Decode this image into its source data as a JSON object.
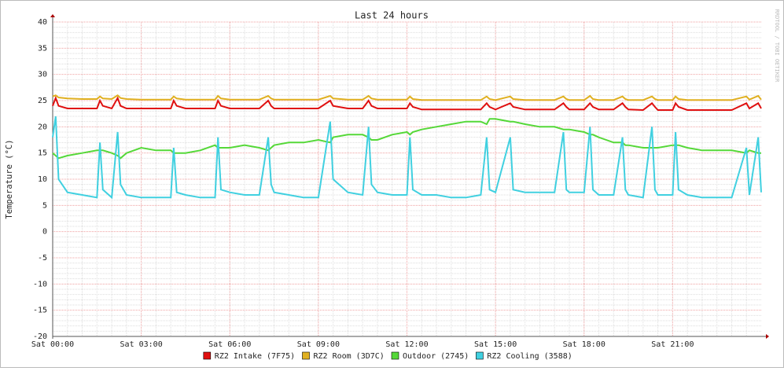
{
  "chart_data": {
    "type": "line",
    "title": "Last 24 hours",
    "y_label": "Temperature (°C)",
    "side_text": "RRDTOOL / TOBI OETIKER",
    "xlim": [
      0,
      24
    ],
    "xticks": [
      {
        "value": 0,
        "label": "Sat 00:00"
      },
      {
        "value": 3,
        "label": "Sat 03:00"
      },
      {
        "value": 6,
        "label": "Sat 06:00"
      },
      {
        "value": 9,
        "label": "Sat 09:00"
      },
      {
        "value": 12,
        "label": "Sat 12:00"
      },
      {
        "value": 15,
        "label": "Sat 15:00"
      },
      {
        "value": 18,
        "label": "Sat 18:00"
      },
      {
        "value": 21,
        "label": "Sat 21:00"
      }
    ],
    "ylim": [
      -20,
      40
    ],
    "yticks": [
      -20,
      -15,
      -10,
      -5,
      0,
      5,
      10,
      15,
      20,
      25,
      30,
      35,
      40
    ],
    "grid": true,
    "legend": "bottom",
    "x": [
      0,
      0.1,
      0.2,
      0.5,
      1,
      1.5,
      1.6,
      1.7,
      2,
      2.2,
      2.3,
      2.5,
      3,
      3.5,
      4,
      4.1,
      4.2,
      4.5,
      5,
      5.5,
      5.6,
      5.7,
      6,
      6.5,
      7,
      7.3,
      7.4,
      7.5,
      8,
      8.5,
      9,
      9.4,
      9.5,
      10,
      10.5,
      10.7,
      10.8,
      11,
      11.5,
      12,
      12.1,
      12.2,
      12.5,
      13,
      13.5,
      14,
      14.5,
      14.7,
      14.8,
      15,
      15.5,
      15.6,
      16,
      16.5,
      17,
      17.3,
      17.4,
      17.5,
      18,
      18.2,
      18.3,
      18.5,
      19,
      19.3,
      19.4,
      19.5,
      20,
      20.3,
      20.4,
      20.5,
      21,
      21.1,
      21.2,
      21.5,
      22,
      22.5,
      23,
      23.5,
      23.6,
      23.9,
      24
    ],
    "series": [
      {
        "name": "RZ2 Intake (7F75)",
        "color": "#e01010",
        "values": [
          24,
          25.5,
          24,
          23.5,
          23.5,
          23.5,
          25,
          24,
          23.5,
          25.5,
          24,
          23.5,
          23.5,
          23.5,
          23.5,
          25,
          24,
          23.5,
          23.5,
          23.5,
          25,
          24,
          23.5,
          23.5,
          23.5,
          25,
          24,
          23.5,
          23.5,
          23.5,
          23.5,
          25,
          24,
          23.5,
          23.5,
          25,
          24,
          23.5,
          23.5,
          23.5,
          24.5,
          23.8,
          23.3,
          23.3,
          23.3,
          23.3,
          23.3,
          24.5,
          23.8,
          23.3,
          24.5,
          23.8,
          23.3,
          23.3,
          23.3,
          24.5,
          23.8,
          23.3,
          23.3,
          24.5,
          23.8,
          23.3,
          23.3,
          24.5,
          23.8,
          23.3,
          23.2,
          24.5,
          23.8,
          23.2,
          23.2,
          24.5,
          23.8,
          23.2,
          23.2,
          23.2,
          23.2,
          24.5,
          23.5,
          24.5,
          23.5
        ]
      },
      {
        "name": "RZ2 Room (3D7C)",
        "color": "#e0b020",
        "values": [
          25.8,
          26,
          25.6,
          25.4,
          25.3,
          25.3,
          25.8,
          25.4,
          25.3,
          26,
          25.5,
          25.3,
          25.2,
          25.2,
          25.2,
          25.8,
          25.4,
          25.2,
          25.2,
          25.2,
          25.9,
          25.4,
          25.2,
          25.2,
          25.2,
          25.9,
          25.4,
          25.2,
          25.2,
          25.2,
          25.2,
          25.9,
          25.4,
          25.2,
          25.2,
          25.9,
          25.4,
          25.2,
          25.2,
          25.2,
          25.8,
          25.3,
          25.1,
          25.1,
          25.1,
          25.1,
          25.1,
          25.8,
          25.3,
          25.1,
          25.8,
          25.3,
          25.1,
          25.1,
          25.1,
          25.8,
          25.3,
          25.1,
          25.1,
          25.9,
          25.3,
          25.1,
          25.1,
          25.8,
          25.3,
          25.1,
          25.1,
          25.8,
          25.3,
          25.1,
          25.1,
          25.8,
          25.3,
          25.1,
          25.1,
          25.1,
          25.1,
          25.8,
          25.2,
          25.9,
          25.2
        ]
      },
      {
        "name": "Outdoor (2745)",
        "color": "#55d838",
        "values": [
          15,
          14.5,
          14,
          14.5,
          15,
          15.5,
          15.5,
          15.5,
          15,
          14.5,
          14,
          15,
          16,
          15.5,
          15.5,
          15,
          15,
          15,
          15.5,
          16.5,
          16,
          16,
          16,
          16.5,
          16,
          15.5,
          16,
          16.5,
          17,
          17,
          17.5,
          17,
          18,
          18.5,
          18.5,
          18,
          17.5,
          17.5,
          18.5,
          19,
          18.5,
          19,
          19.5,
          20,
          20.5,
          21,
          21,
          20.5,
          21.5,
          21.5,
          21,
          21,
          20.5,
          20,
          20,
          19.5,
          19.5,
          19.5,
          19,
          18.5,
          18.5,
          18,
          17,
          17,
          16.5,
          16.5,
          16,
          16,
          16,
          16,
          16.5,
          16.5,
          16.5,
          16,
          15.5,
          15.5,
          15.5,
          15,
          15.5,
          15,
          15
        ]
      },
      {
        "name": "RZ2 Cooling (3588)",
        "color": "#40d0e0",
        "values": [
          18,
          22,
          10,
          7.5,
          7,
          6.5,
          17,
          8,
          6.5,
          19,
          9,
          7,
          6.5,
          6.5,
          6.5,
          16,
          7.5,
          7,
          6.5,
          6.5,
          18,
          8,
          7.5,
          7,
          7,
          18,
          9,
          7.5,
          7,
          6.5,
          6.5,
          21,
          10,
          7.5,
          7,
          20,
          9,
          7.5,
          7,
          7,
          18,
          8,
          7,
          7,
          6.5,
          6.5,
          7,
          18,
          8,
          7.5,
          18,
          8,
          7.5,
          7.5,
          7.5,
          19,
          8,
          7.5,
          7.5,
          20,
          8,
          7,
          7,
          18,
          8,
          7,
          6.5,
          20,
          8,
          7,
          7,
          19,
          8,
          7,
          6.5,
          6.5,
          6.5,
          16,
          7,
          18,
          7.5
        ]
      }
    ]
  }
}
